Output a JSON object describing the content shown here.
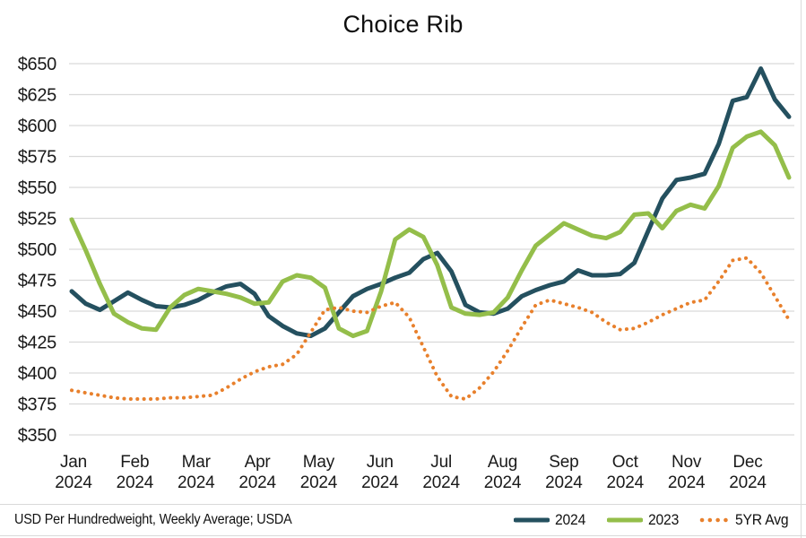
{
  "title": "Choice Rib",
  "footer": {
    "source_note": "USD Per Hundredweight, Weekly Average; USDA"
  },
  "colors": {
    "series_2024": "#24505f",
    "series_2023": "#94be4a",
    "series_5yr": "#e8802c",
    "gridline": "#d9d9d9",
    "text": "#1a1a1a"
  },
  "legend": {
    "items": [
      {
        "label": "2024",
        "color": "#24505f",
        "style": "solid"
      },
      {
        "label": "2023",
        "color": "#94be4a",
        "style": "solid"
      },
      {
        "label": "5YR Avg",
        "color": "#e8802c",
        "style": "dotted"
      }
    ]
  },
  "chart_data": {
    "type": "line",
    "title": "Choice Rib",
    "ylabel": "USD Per Hundredweight",
    "weeks": 52,
    "grid": true,
    "legend_position": "bottom-right",
    "y_axis": {
      "min": 350,
      "max": 650,
      "step": 25,
      "tick_prefix": "$",
      "tick_labels": [
        "$650",
        "$625",
        "$600",
        "$575",
        "$550",
        "$525",
        "$500",
        "$475",
        "$450",
        "$425",
        "$400",
        "$375",
        "$350"
      ]
    },
    "x_axis": {
      "months": [
        "Jan",
        "Feb",
        "Mar",
        "Apr",
        "May",
        "Jun",
        "Jul",
        "Aug",
        "Sep",
        "Oct",
        "Nov",
        "Dec"
      ],
      "year": "2024"
    },
    "series": [
      {
        "name": "2024",
        "color": "#24505f",
        "line_style": "solid",
        "values": [
          466,
          456,
          451,
          458,
          465,
          459,
          454,
          453,
          455,
          459,
          465,
          470,
          472,
          464,
          446,
          438,
          432,
          430,
          436,
          449,
          462,
          468,
          472,
          477,
          481,
          492,
          497,
          482,
          455,
          449,
          448,
          452,
          462,
          467,
          471,
          474,
          483,
          479,
          479,
          480,
          489,
          515,
          541,
          556,
          558,
          561,
          585,
          620,
          623,
          646,
          621,
          607
        ]
      },
      {
        "name": "2023",
        "color": "#94be4a",
        "line_style": "solid",
        "values": [
          524,
          499,
          472,
          448,
          441,
          436,
          435,
          453,
          463,
          468,
          466,
          464,
          461,
          456,
          457,
          474,
          479,
          477,
          469,
          436,
          430,
          434,
          466,
          508,
          516,
          510,
          487,
          453,
          448,
          447,
          449,
          461,
          483,
          503,
          512,
          521,
          516,
          511,
          509,
          514,
          528,
          529,
          517,
          531,
          536,
          533,
          551,
          582,
          591,
          595,
          584,
          558
        ]
      },
      {
        "name": "5YR Avg",
        "color": "#e8802c",
        "line_style": "dotted",
        "values": [
          386,
          384,
          382,
          380,
          379,
          379,
          379,
          380,
          380,
          381,
          382,
          388,
          395,
          401,
          405,
          407,
          415,
          433,
          451,
          453,
          450,
          449,
          454,
          457,
          445,
          421,
          397,
          381,
          379,
          388,
          401,
          418,
          437,
          455,
          459,
          456,
          453,
          449,
          441,
          435,
          436,
          441,
          447,
          452,
          457,
          459,
          474,
          491,
          493,
          481,
          462,
          443
        ]
      }
    ]
  }
}
